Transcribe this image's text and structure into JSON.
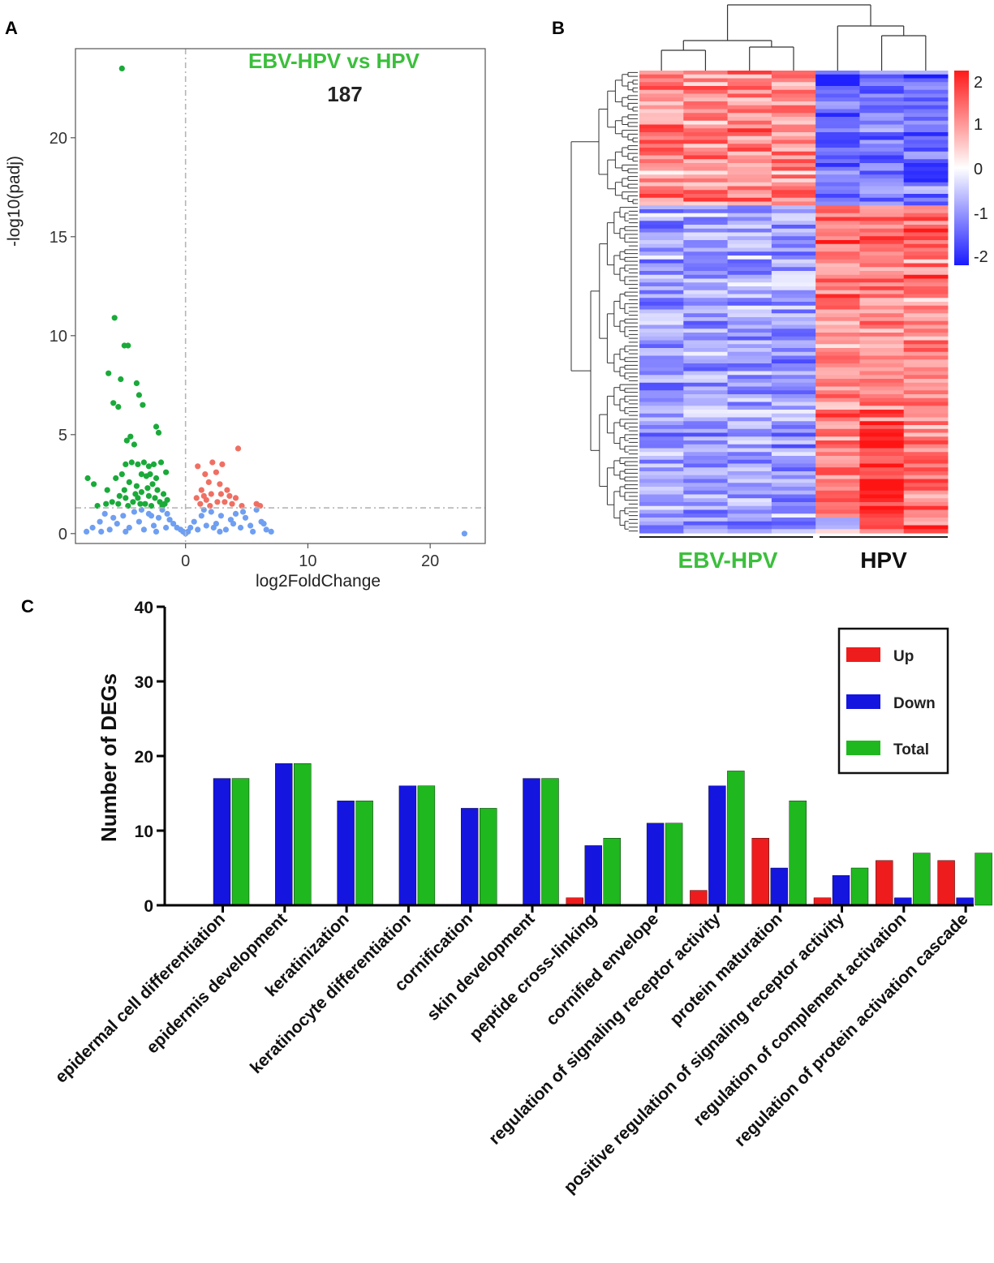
{
  "panels": {
    "a": "A",
    "b": "B",
    "c": "C"
  },
  "chart_data": [
    {
      "type": "scatter",
      "panel": "A",
      "title": "EBV-HPV vs HPV",
      "subtitle": "187",
      "xlabel": "log2FoldChange",
      "ylabel": "-log10(padj)",
      "xlim": [
        -9,
        24.5
      ],
      "ylim": [
        -0.5,
        24.5
      ],
      "xticks": [
        0,
        10,
        20
      ],
      "yticks": [
        0,
        5,
        10,
        15,
        20
      ],
      "threshold_x": 0,
      "threshold_y": 1.3,
      "colors": {
        "down": "#1aaa3a",
        "up": "#ef6f63",
        "ns": "#6f9ff2"
      },
      "series": [
        {
          "name": "down",
          "points": [
            [
              -5.2,
              23.5
            ],
            [
              -5.8,
              10.9
            ],
            [
              -5.0,
              9.5
            ],
            [
              -4.7,
              9.5
            ],
            [
              -6.3,
              8.1
            ],
            [
              -5.3,
              7.8
            ],
            [
              -4.0,
              7.6
            ],
            [
              -3.8,
              7.0
            ],
            [
              -5.9,
              6.6
            ],
            [
              -5.5,
              6.4
            ],
            [
              -3.5,
              6.5
            ],
            [
              -2.4,
              5.4
            ],
            [
              -2.2,
              5.1
            ],
            [
              -4.5,
              4.9
            ],
            [
              -4.8,
              4.7
            ],
            [
              -4.2,
              4.5
            ],
            [
              -8.0,
              2.8
            ],
            [
              -7.5,
              2.5
            ],
            [
              -6.4,
              2.2
            ],
            [
              -5.7,
              2.8
            ],
            [
              -5.2,
              3.0
            ],
            [
              -4.9,
              3.5
            ],
            [
              -4.4,
              3.6
            ],
            [
              -3.9,
              3.5
            ],
            [
              -3.4,
              3.6
            ],
            [
              -3.0,
              3.4
            ],
            [
              -2.6,
              3.5
            ],
            [
              -2.0,
              3.6
            ],
            [
              -1.6,
              3.1
            ],
            [
              -4.6,
              2.6
            ],
            [
              -4.0,
              2.4
            ],
            [
              -3.2,
              2.9
            ],
            [
              -2.7,
              2.5
            ],
            [
              -2.3,
              2.2
            ],
            [
              -1.8,
              2.0
            ],
            [
              -1.5,
              1.7
            ],
            [
              -5.4,
              1.9
            ],
            [
              -4.9,
              1.8
            ],
            [
              -3.6,
              2.1
            ],
            [
              -3.0,
              1.9
            ],
            [
              -2.5,
              1.8
            ],
            [
              -2.1,
              1.6
            ],
            [
              -1.7,
              1.5
            ],
            [
              -6.0,
              1.6
            ],
            [
              -5.5,
              1.5
            ],
            [
              -4.3,
              1.6
            ],
            [
              -3.7,
              1.5
            ],
            [
              -3.3,
              1.5
            ],
            [
              -2.8,
              1.4
            ],
            [
              -1.9,
              1.4
            ],
            [
              -6.5,
              1.5
            ],
            [
              -7.2,
              1.4
            ],
            [
              -4.7,
              1.4
            ],
            [
              -3.9,
              1.8
            ],
            [
              -3.1,
              2.3
            ],
            [
              -2.4,
              2.8
            ],
            [
              -2.9,
              3.0
            ],
            [
              -3.6,
              3.0
            ],
            [
              -4.1,
              2.0
            ],
            [
              -5.0,
              2.2
            ]
          ]
        },
        {
          "name": "up",
          "points": [
            [
              4.3,
              4.3
            ],
            [
              2.2,
              3.6
            ],
            [
              3.0,
              3.5
            ],
            [
              1.0,
              3.4
            ],
            [
              1.6,
              3.0
            ],
            [
              2.5,
              3.1
            ],
            [
              1.9,
              2.6
            ],
            [
              2.8,
              2.5
            ],
            [
              3.4,
              2.2
            ],
            [
              1.3,
              2.2
            ],
            [
              2.1,
              2.0
            ],
            [
              3.6,
              1.9
            ],
            [
              4.1,
              1.8
            ],
            [
              0.9,
              1.8
            ],
            [
              1.7,
              1.7
            ],
            [
              2.6,
              1.6
            ],
            [
              3.2,
              1.6
            ],
            [
              5.8,
              1.5
            ],
            [
              6.1,
              1.4
            ],
            [
              1.2,
              1.5
            ],
            [
              2.0,
              1.4
            ],
            [
              3.8,
              1.5
            ],
            [
              4.6,
              1.4
            ],
            [
              1.5,
              1.9
            ],
            [
              2.9,
              2.0
            ]
          ]
        },
        {
          "name": "ns",
          "points": [
            [
              22.8,
              0.0
            ],
            [
              -8.1,
              0.1
            ],
            [
              -7.6,
              0.3
            ],
            [
              -7.0,
              0.6
            ],
            [
              -6.6,
              1.0
            ],
            [
              -6.2,
              0.2
            ],
            [
              -5.6,
              0.5
            ],
            [
              -5.1,
              0.9
            ],
            [
              -4.6,
              0.3
            ],
            [
              -4.2,
              1.1
            ],
            [
              -3.8,
              0.6
            ],
            [
              -3.4,
              0.2
            ],
            [
              -3.0,
              1.0
            ],
            [
              -2.6,
              0.4
            ],
            [
              -2.2,
              0.8
            ],
            [
              -1.9,
              1.2
            ],
            [
              -1.6,
              0.3
            ],
            [
              -1.3,
              0.7
            ],
            [
              -1.0,
              0.5
            ],
            [
              -0.7,
              0.3
            ],
            [
              -0.4,
              0.2
            ],
            [
              -0.2,
              0.1
            ],
            [
              0.0,
              0.0
            ],
            [
              0.2,
              0.1
            ],
            [
              0.4,
              0.3
            ],
            [
              0.7,
              0.6
            ],
            [
              1.0,
              0.2
            ],
            [
              1.3,
              0.9
            ],
            [
              1.7,
              0.4
            ],
            [
              2.1,
              1.1
            ],
            [
              2.5,
              0.5
            ],
            [
              2.9,
              0.9
            ],
            [
              3.3,
              0.2
            ],
            [
              3.7,
              0.7
            ],
            [
              4.1,
              1.0
            ],
            [
              4.5,
              0.3
            ],
            [
              4.9,
              0.8
            ],
            [
              5.3,
              0.4
            ],
            [
              5.8,
              1.2
            ],
            [
              6.2,
              0.6
            ],
            [
              6.6,
              0.2
            ],
            [
              7.0,
              0.1
            ],
            [
              -5.9,
              0.8
            ],
            [
              -4.9,
              0.1
            ],
            [
              -3.6,
              1.2
            ],
            [
              -2.8,
              0.9
            ],
            [
              -1.5,
              1.0
            ],
            [
              1.5,
              1.2
            ],
            [
              2.8,
              0.1
            ],
            [
              3.9,
              0.5
            ],
            [
              4.7,
              1.1
            ],
            [
              5.5,
              0.1
            ],
            [
              6.4,
              0.5
            ],
            [
              -6.9,
              0.1
            ],
            [
              -2.4,
              0.1
            ],
            [
              2.3,
              0.3
            ]
          ]
        }
      ]
    },
    {
      "type": "heatmap",
      "panel": "B",
      "groups": [
        "EBV-HPV",
        "HPV"
      ],
      "group_colors": {
        "EBV-HPV": "#3cbf3c",
        "HPV": "#111111"
      },
      "columns_per_group": [
        4,
        3
      ],
      "color_range": [
        -2,
        2
      ],
      "colorbar_ticks": [
        "2",
        "1",
        "0",
        "-1",
        "-2"
      ]
    },
    {
      "type": "bar",
      "panel": "C",
      "ylabel": "Number of DEGs",
      "ylim": [
        0,
        40
      ],
      "yticks": [
        0,
        10,
        20,
        30,
        40
      ],
      "legend_position": "top-right",
      "categories": [
        "epidermal cell differentiation",
        "epidermis development",
        "keratinization",
        "keratinocyte differentiation",
        "cornification",
        "skin development",
        "peptide cross-linking",
        "cornified envelope",
        "regulation of signaling receptor activity",
        "protein maturation",
        "positive regulation of signaling receptor activity",
        "regulation of complement activation",
        "regulation of protein activation cascade"
      ],
      "series": [
        {
          "name": "Up",
          "color": "#ee1c1c",
          "values": [
            0,
            0,
            0,
            0,
            0,
            0,
            1,
            0,
            2,
            9,
            1,
            6,
            6
          ]
        },
        {
          "name": "Down",
          "color": "#1515e0",
          "values": [
            17,
            19,
            14,
            16,
            13,
            17,
            8,
            11,
            16,
            5,
            4,
            1,
            1
          ]
        },
        {
          "name": "Total",
          "color": "#1fb81f",
          "values": [
            17,
            19,
            14,
            16,
            13,
            17,
            9,
            11,
            18,
            14,
            5,
            7,
            7
          ]
        }
      ]
    }
  ]
}
